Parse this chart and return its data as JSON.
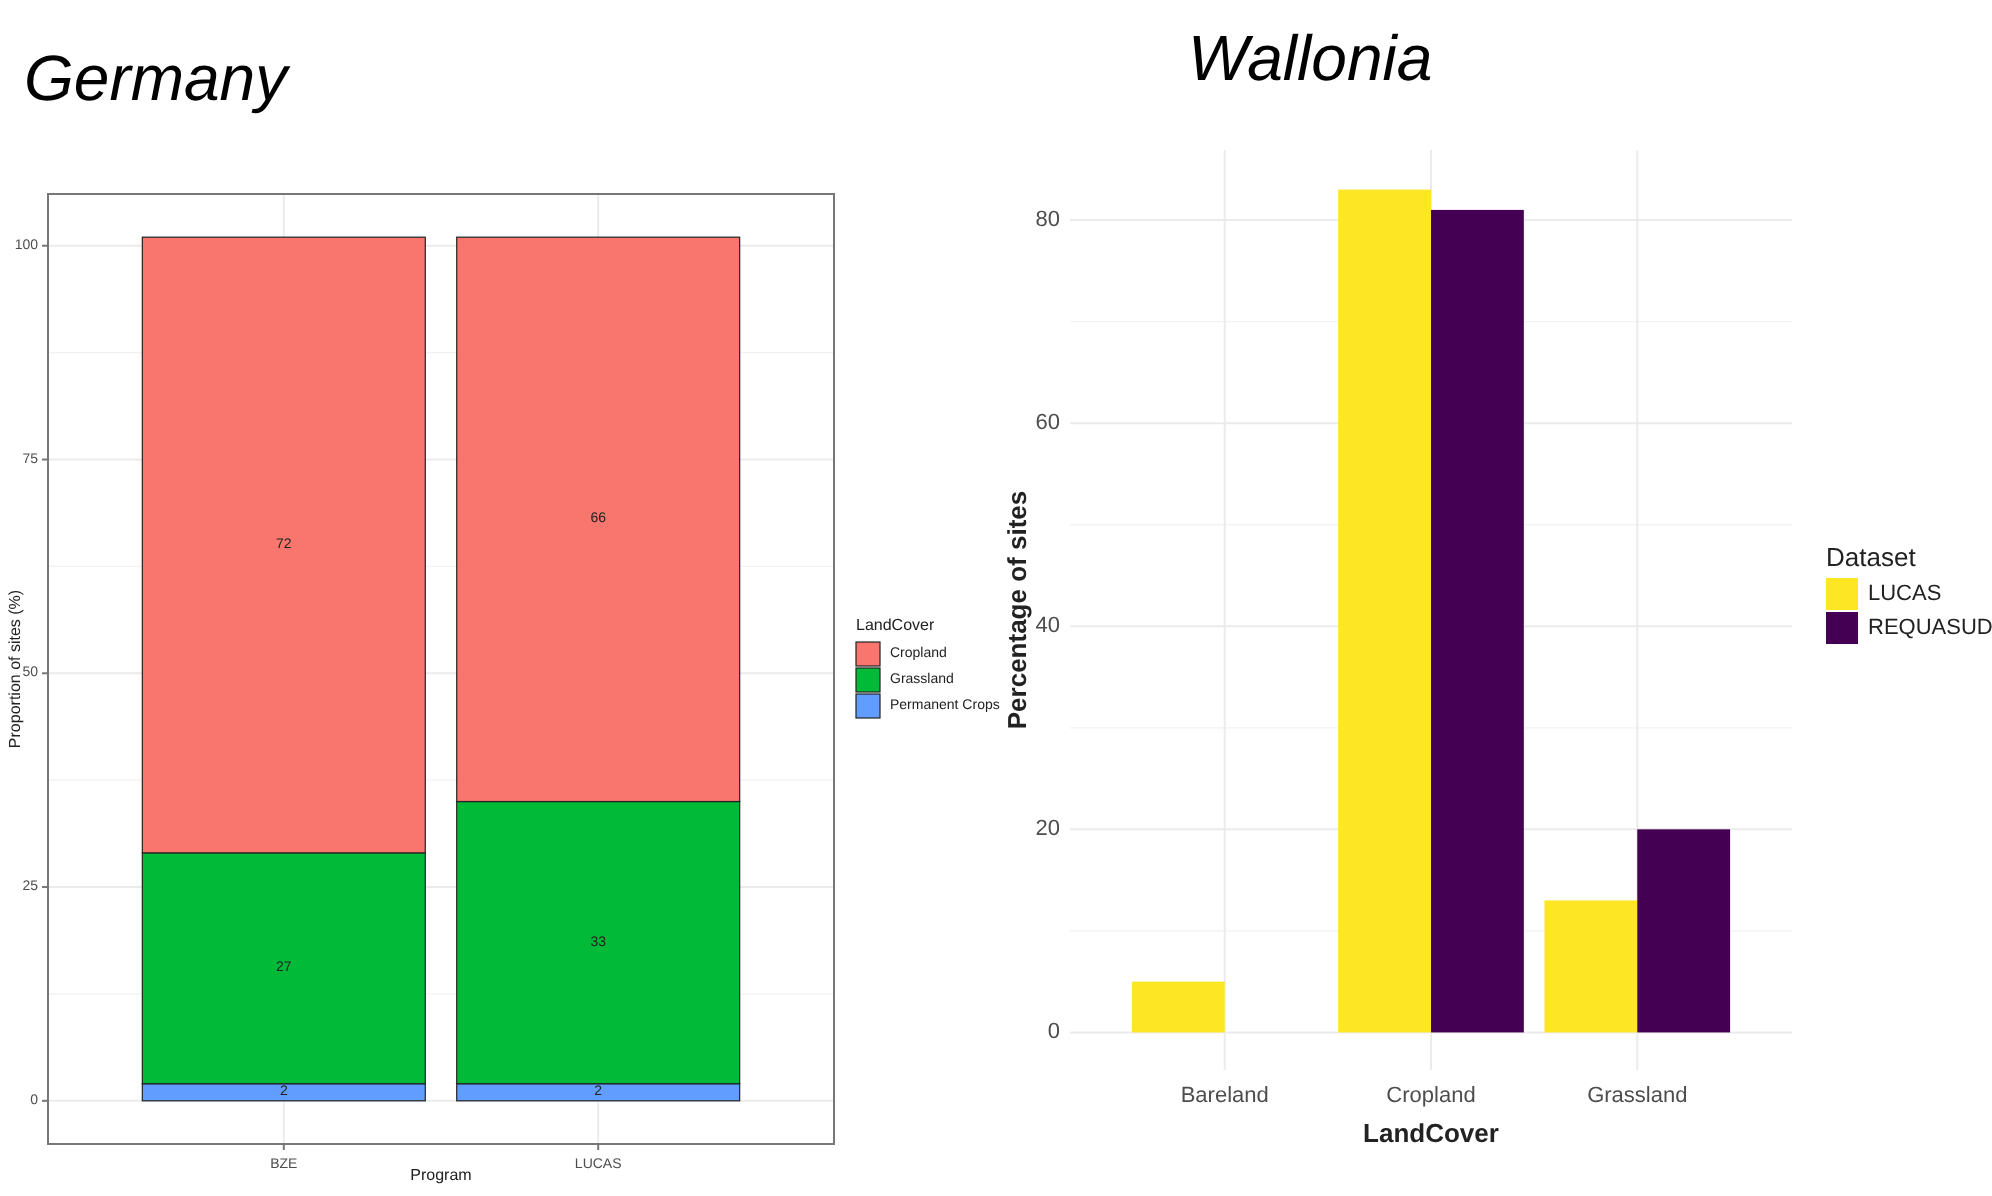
{
  "chart_data": [
    {
      "type": "bar",
      "title": "Germany",
      "xlabel": "Program",
      "ylabel": "Proportion of sites (%)",
      "legend_title": "LandCover",
      "categories": [
        "BZE",
        "LUCAS"
      ],
      "stacked": true,
      "data_labels": true,
      "ylim": [
        -5.05,
        106.05
      ],
      "yticks": [
        0,
        25,
        50,
        75,
        100
      ],
      "grid": true,
      "legend": "right",
      "series": [
        {
          "name": "Permanent Crops",
          "color": "#619cff",
          "values": [
            2,
            2
          ]
        },
        {
          "name": "Grassland",
          "color": "#00ba38",
          "values": [
            27,
            33
          ]
        },
        {
          "name": "Cropland",
          "color": "#f8766d",
          "values": [
            72,
            66
          ]
        }
      ]
    },
    {
      "type": "bar",
      "title": "Wallonia",
      "xlabel": "LandCover",
      "ylabel": "Percentage of sites",
      "legend_title": "Dataset",
      "categories": [
        "Bareland",
        "Cropland",
        "Grassland"
      ],
      "ylim": [
        -3.7,
        86.9
      ],
      "yticks": [
        0,
        20,
        40,
        60,
        80
      ],
      "grid": true,
      "legend": "right",
      "series": [
        {
          "name": "LUCAS",
          "color": "#fde725",
          "values": [
            5,
            83,
            13
          ]
        },
        {
          "name": "REQUASUD",
          "color": "#440154",
          "values": [
            null,
            81,
            20
          ]
        }
      ]
    }
  ]
}
